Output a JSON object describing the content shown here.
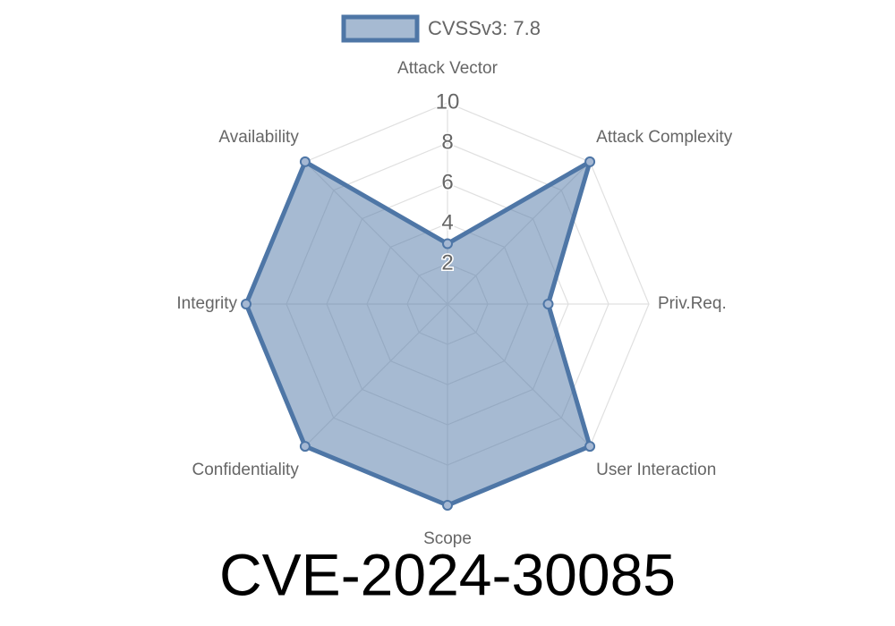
{
  "chart_data": {
    "type": "radar",
    "title": "CVE-2024-30085",
    "categories": [
      "Attack Vector",
      "Attack Complexity",
      "Priv.Req.",
      "User Interaction",
      "Scope",
      "Confidentiality",
      "Integrity",
      "Availability"
    ],
    "series": [
      {
        "name": "CVSSv3: 7.8",
        "color": "#4e76a6",
        "values": [
          3,
          10,
          5,
          10,
          10,
          10,
          10,
          10
        ]
      }
    ],
    "rlim": [
      0,
      10
    ],
    "rticks": [
      2,
      4,
      6,
      8,
      10
    ],
    "grid": true,
    "legend": "top"
  }
}
